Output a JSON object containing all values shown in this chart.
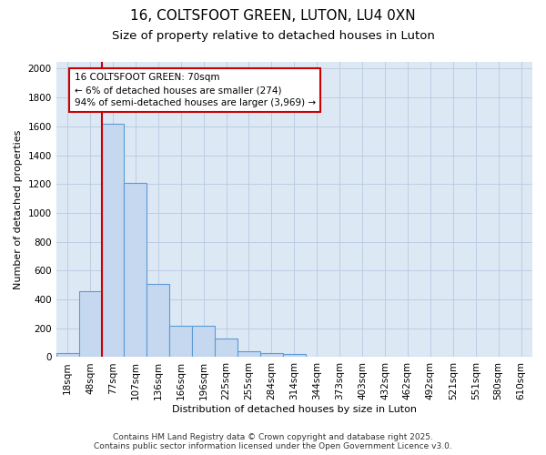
{
  "title": "16, COLTSFOOT GREEN, LUTON, LU4 0XN",
  "subtitle": "Size of property relative to detached houses in Luton",
  "xlabel": "Distribution of detached houses by size in Luton",
  "ylabel": "Number of detached properties",
  "categories": [
    "18sqm",
    "48sqm",
    "77sqm",
    "107sqm",
    "136sqm",
    "166sqm",
    "196sqm",
    "225sqm",
    "255sqm",
    "284sqm",
    "314sqm",
    "344sqm",
    "373sqm",
    "403sqm",
    "432sqm",
    "462sqm",
    "492sqm",
    "521sqm",
    "551sqm",
    "580sqm",
    "610sqm"
  ],
  "values": [
    30,
    460,
    1620,
    1210,
    510,
    220,
    220,
    130,
    40,
    30,
    20,
    0,
    0,
    0,
    0,
    0,
    0,
    0,
    0,
    0,
    0
  ],
  "bar_color": "#c5d8f0",
  "bar_edge_color": "#5b9bd5",
  "ref_line_color": "#cc0000",
  "annotation_text": "16 COLTSFOOT GREEN: 70sqm\n← 6% of detached houses are smaller (274)\n94% of semi-detached houses are larger (3,969) →",
  "annotation_box_color": "#ffffff",
  "annotation_box_edge": "#cc0000",
  "ylim": [
    0,
    2050
  ],
  "yticks": [
    0,
    200,
    400,
    600,
    800,
    1000,
    1200,
    1400,
    1600,
    1800,
    2000
  ],
  "background_color": "#dde8f5",
  "footer_line1": "Contains HM Land Registry data © Crown copyright and database right 2025.",
  "footer_line2": "Contains public sector information licensed under the Open Government Licence v3.0.",
  "title_fontsize": 11,
  "subtitle_fontsize": 9.5,
  "xlabel_fontsize": 8,
  "ylabel_fontsize": 8,
  "tick_fontsize": 7.5,
  "annotation_fontsize": 7.5,
  "footer_fontsize": 6.5
}
